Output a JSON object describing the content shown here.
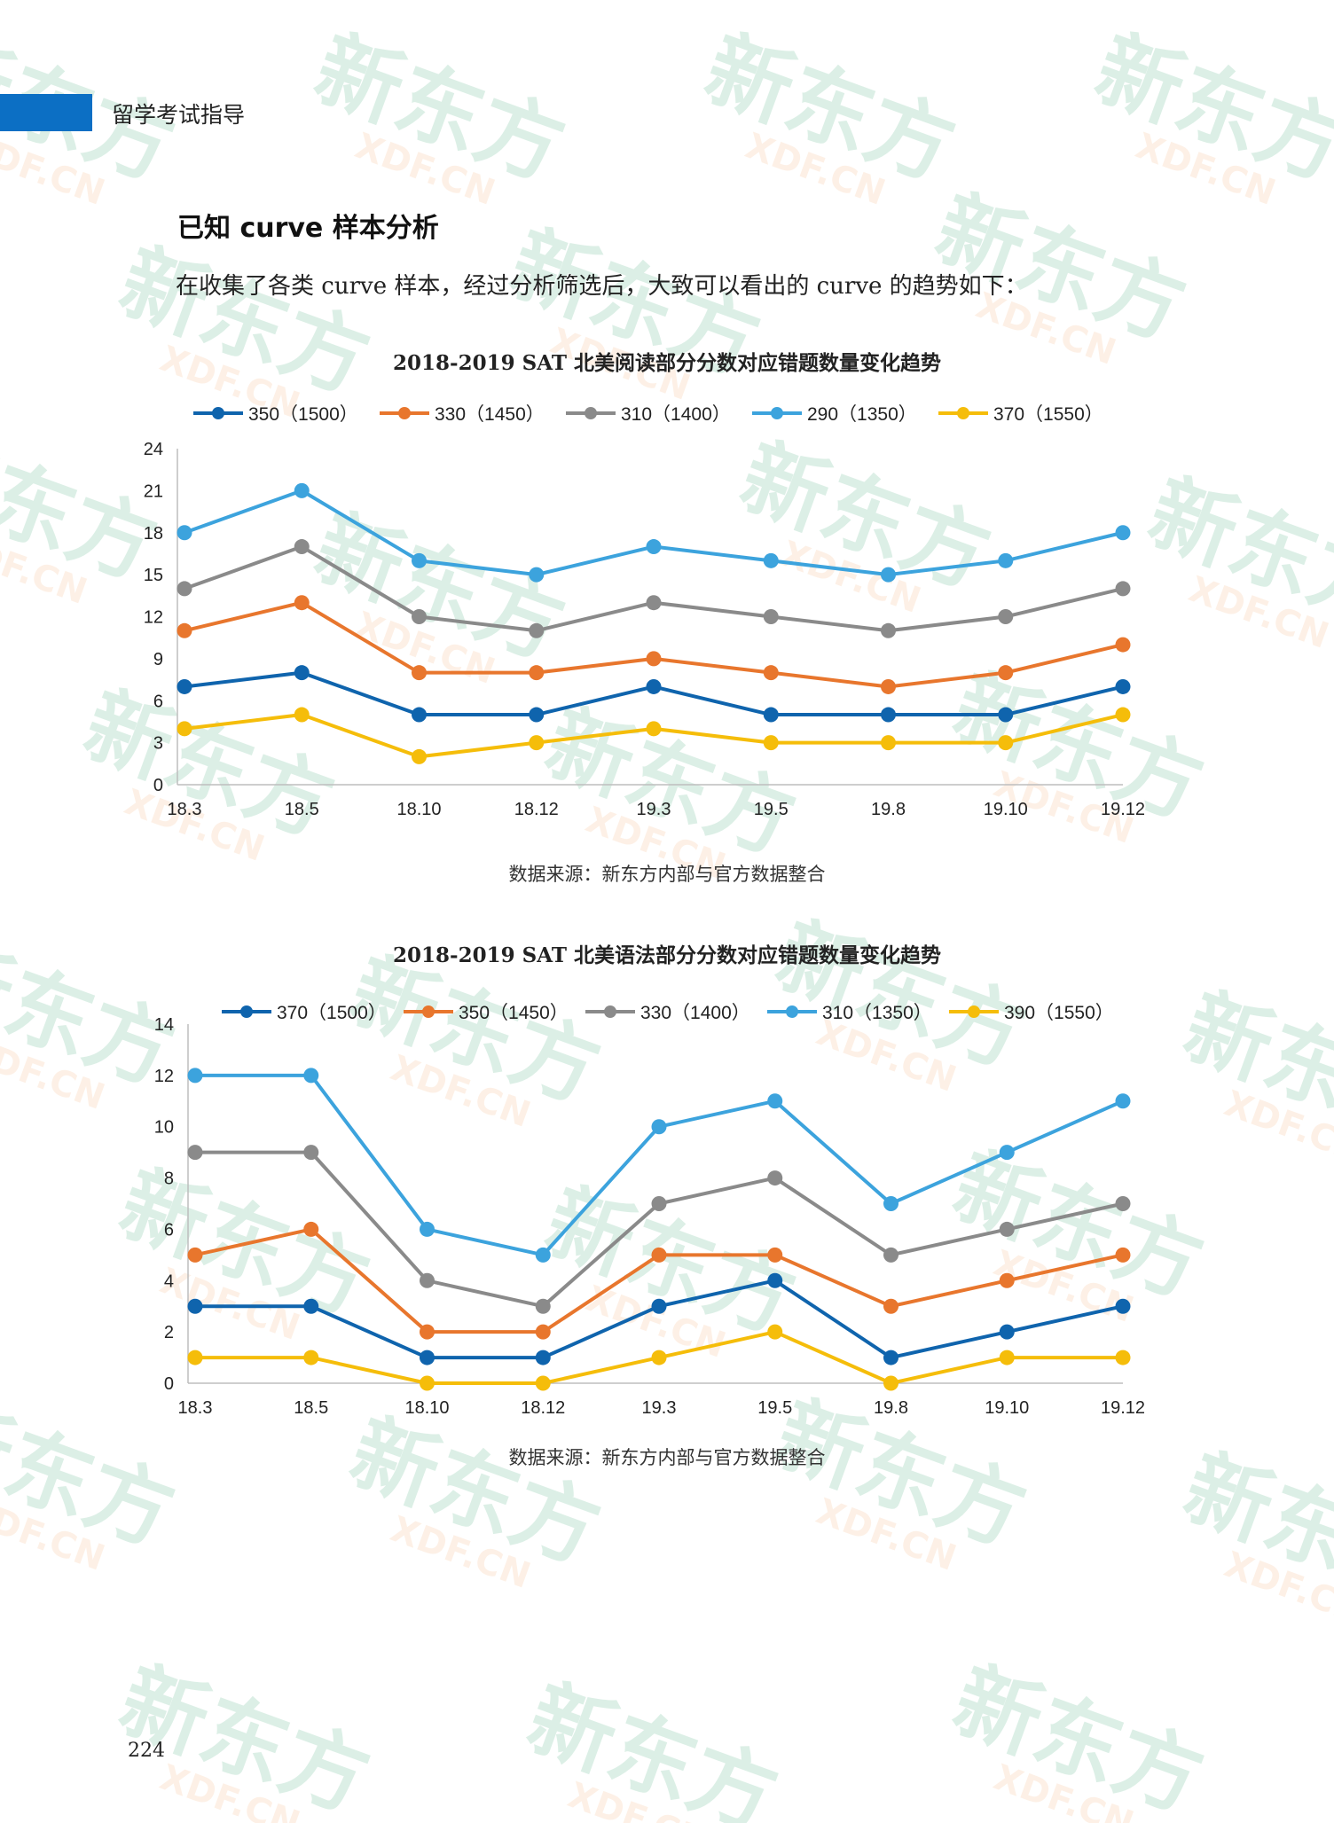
{
  "header": {
    "label": "留学考试指导",
    "accent_color": "#0c6fc4"
  },
  "section_title": "已知 curve 样本分析",
  "intro_text": "在收集了各类 curve 样本，经过分析筛选后，大致可以看出的 curve 的趋势如下：",
  "watermark": {
    "main": "新东方",
    "sub": "XDF.CN"
  },
  "page_number": "224",
  "chart_data": [
    {
      "type": "line",
      "title": "2018-2019 SAT 北美阅读部分分数对应错题数量变化趋势",
      "source": "数据来源：新东方内部与官方数据整合",
      "x": [
        "18.3",
        "18.5",
        "18.10",
        "18.12",
        "19.3",
        "19.5",
        "19.8",
        "19.10",
        "19.12"
      ],
      "ylim": [
        0,
        24
      ],
      "yticks": [
        "0",
        "3",
        "6",
        "9",
        "12",
        "15",
        "18",
        "21",
        "24"
      ],
      "grid": false,
      "legend_position": "top",
      "series": [
        {
          "name": "350（1500）",
          "color": "#0f64ad",
          "values": [
            7,
            8,
            5,
            5,
            7,
            5,
            5,
            5,
            7
          ]
        },
        {
          "name": "330（1450）",
          "color": "#e8762d",
          "values": [
            11,
            13,
            8,
            8,
            9,
            8,
            7,
            8,
            10
          ]
        },
        {
          "name": "310（1400）",
          "color": "#8a8a8a",
          "values": [
            14,
            17,
            12,
            11,
            13,
            12,
            11,
            12,
            14
          ]
        },
        {
          "name": "290（1350）",
          "color": "#3ca3dd",
          "values": [
            18,
            21,
            16,
            15,
            17,
            16,
            15,
            16,
            18
          ]
        },
        {
          "name": "370（1550）",
          "color": "#f5bd0a",
          "values": [
            4,
            5,
            2,
            3,
            4,
            3,
            3,
            3,
            5
          ]
        }
      ]
    },
    {
      "type": "line",
      "title": "2018-2019 SAT 北美语法部分分数对应错题数量变化趋势",
      "source": "数据来源：新东方内部与官方数据整合",
      "x": [
        "18.3",
        "18.5",
        "18.10",
        "18.12",
        "19.3",
        "19.5",
        "19.8",
        "19.10",
        "19.12"
      ],
      "ylim": [
        0,
        14
      ],
      "yticks": [
        "0",
        "2",
        "4",
        "6",
        "8",
        "10",
        "12",
        "14"
      ],
      "grid": false,
      "legend_position": "top",
      "series": [
        {
          "name": "370（1500）",
          "color": "#0f64ad",
          "values": [
            3,
            3,
            1,
            1,
            3,
            4,
            1,
            2,
            3
          ]
        },
        {
          "name": "350（1450）",
          "color": "#e8762d",
          "values": [
            5,
            6,
            2,
            2,
            5,
            5,
            3,
            4,
            5
          ]
        },
        {
          "name": "330（1400）",
          "color": "#8a8a8a",
          "values": [
            9,
            9,
            4,
            3,
            7,
            8,
            5,
            6,
            7
          ]
        },
        {
          "name": "310（1350）",
          "color": "#3ca3dd",
          "values": [
            12,
            12,
            6,
            5,
            10,
            11,
            7,
            9,
            11
          ]
        },
        {
          "name": "390（1550）",
          "color": "#f5bd0a",
          "values": [
            1,
            1,
            0,
            0,
            1,
            2,
            0,
            1,
            1
          ]
        }
      ]
    }
  ]
}
